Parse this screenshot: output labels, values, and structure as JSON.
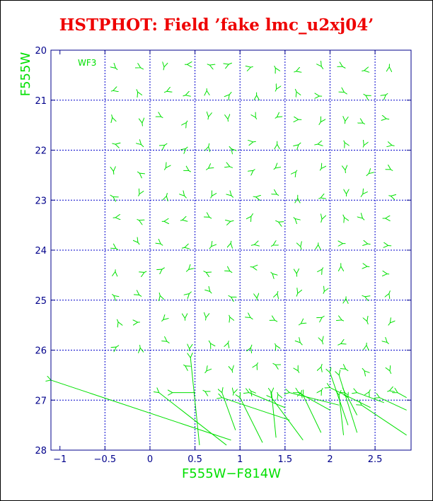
{
  "chart_data": {
    "type": "vector",
    "title": "HSTPHOT: Field ’fake lmc_u2xj04’",
    "xlabel": "F555W−F814W",
    "ylabel": "F555W",
    "xlim": [
      -1.1,
      2.9
    ],
    "ylim": [
      28,
      20
    ],
    "x_ticks": [
      "−1",
      "−0.5",
      "0",
      "0.5",
      "1",
      "1.5",
      "2",
      "2.5"
    ],
    "y_ticks": [
      "20",
      "21",
      "22",
      "23",
      "24",
      "25",
      "26",
      "27",
      "28"
    ],
    "grid": true,
    "grid_x": [
      -0.5,
      0.0,
      0.5,
      1.0,
      1.5,
      2.0,
      2.5
    ],
    "grid_y": [
      21,
      22,
      23,
      24,
      25,
      26,
      27
    ],
    "annotation": "WF3",
    "colors": {
      "title": "#ee0000",
      "axis": "#00008b",
      "grid": "#0000cc",
      "vectors": "#00e000",
      "labels": "#00e000"
    },
    "columns": [
      -0.38,
      -0.1,
      0.15,
      0.4,
      0.65,
      0.9,
      1.15,
      1.4,
      1.65,
      1.9,
      2.15,
      2.4,
      2.65
    ],
    "rows": [
      {
        "y": 20.35,
        "x0": -0.38,
        "n": 13
      },
      {
        "y": 20.85,
        "x0": -0.38,
        "n": 13
      },
      {
        "y": 21.4,
        "x0": -0.38,
        "n": 13
      },
      {
        "y": 21.9,
        "x0": -0.38,
        "n": 13
      },
      {
        "y": 22.4,
        "x0": -0.38,
        "n": 13
      },
      {
        "y": 22.9,
        "x0": -0.38,
        "n": 13
      },
      {
        "y": 23.4,
        "x0": -0.38,
        "n": 13
      },
      {
        "y": 23.9,
        "x0": -0.38,
        "n": 13
      },
      {
        "y": 24.4,
        "x0": -0.38,
        "n": 13
      },
      {
        "y": 24.9,
        "x0": -0.38,
        "n": 13
      },
      {
        "y": 25.4,
        "x0": -0.38,
        "n": 13
      },
      {
        "y": 25.9,
        "x0": -0.38,
        "n": 13
      },
      {
        "y": 26.35,
        "x0": 0.4,
        "n": 10
      },
      {
        "y": 26.85,
        "x0": 0.65,
        "n": 9
      }
    ],
    "long_vectors": [
      {
        "x0": 0.5,
        "y0": 26.85,
        "x1": 0.25,
        "y1": 26.85
      },
      {
        "x0": 0.55,
        "y0": 27.9,
        "x1": 0.45,
        "y1": 26.15
      },
      {
        "x0": 0.85,
        "y0": 27.9,
        "x1": 0.1,
        "y1": 26.85
      },
      {
        "x0": 0.95,
        "y0": 27.6,
        "x1": 0.8,
        "y1": 26.85
      },
      {
        "x0": 1.5,
        "y0": 27.15,
        "x1": 1.1,
        "y1": 26.85
      },
      {
        "x0": 1.25,
        "y0": 27.85,
        "x1": 1.0,
        "y1": 26.95
      },
      {
        "x0": 1.4,
        "y0": 27.75,
        "x1": 1.35,
        "y1": 26.85
      },
      {
        "x0": 1.55,
        "y0": 27.4,
        "x1": 0.8,
        "y1": 26.95
      },
      {
        "x0": 1.7,
        "y0": 27.8,
        "x1": 1.35,
        "y1": 26.95
      },
      {
        "x0": 2.0,
        "y0": 27.2,
        "x1": 1.65,
        "y1": 26.85
      },
      {
        "x0": 2.1,
        "y0": 27.1,
        "x1": 1.55,
        "y1": 26.85
      },
      {
        "x0": 1.9,
        "y0": 27.65,
        "x1": 1.7,
        "y1": 26.9
      },
      {
        "x0": 2.15,
        "y0": 27.7,
        "x1": 2.1,
        "y1": 26.9
      },
      {
        "x0": 2.3,
        "y0": 27.65,
        "x1": 2.1,
        "y1": 26.5
      },
      {
        "x0": 2.2,
        "y0": 27.5,
        "x1": 2.0,
        "y1": 26.45
      },
      {
        "x0": 2.45,
        "y0": 27.15,
        "x1": 2.0,
        "y1": 26.75
      },
      {
        "x0": 2.6,
        "y0": 27.05,
        "x1": 2.3,
        "y1": 26.85
      },
      {
        "x0": 2.85,
        "y0": 27.7,
        "x1": 2.35,
        "y1": 27.1
      },
      {
        "x0": 2.85,
        "y0": 27.2,
        "x1": 2.55,
        "y1": 26.95
      },
      {
        "x0": 2.85,
        "y0": 26.95,
        "x1": 2.75,
        "y1": 26.85
      },
      {
        "x0": 0.9,
        "y0": 27.8,
        "x1": -1.1,
        "y1": 26.6
      },
      {
        "x0": 2.3,
        "y0": 27.3,
        "x1": 2.2,
        "y1": 26.95
      }
    ]
  }
}
